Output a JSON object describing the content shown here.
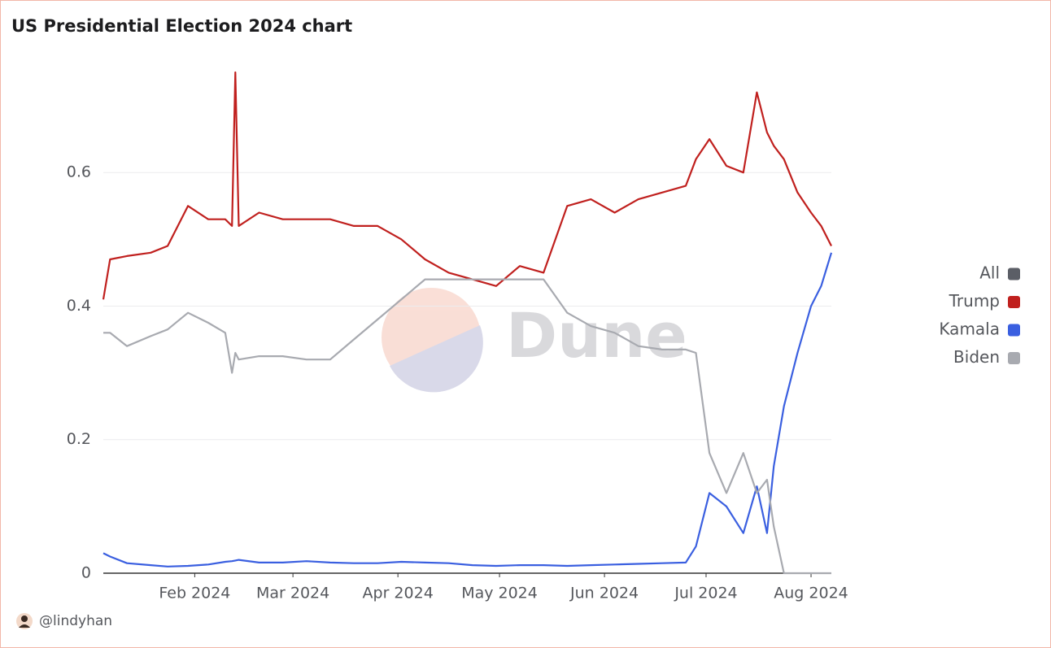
{
  "chart_data": {
    "type": "line",
    "title": "US Presidential Election 2024 chart",
    "watermark": "Dune",
    "footer": "@lindyhan",
    "x": [
      "2024-01-05",
      "2024-01-07",
      "2024-01-12",
      "2024-01-19",
      "2024-01-24",
      "2024-01-30",
      "2024-02-05",
      "2024-02-10",
      "2024-02-12",
      "2024-02-13",
      "2024-02-14",
      "2024-02-20",
      "2024-02-27",
      "2024-03-05",
      "2024-03-12",
      "2024-03-19",
      "2024-03-26",
      "2024-04-02",
      "2024-04-09",
      "2024-04-16",
      "2024-04-23",
      "2024-04-30",
      "2024-05-07",
      "2024-05-14",
      "2024-05-21",
      "2024-05-28",
      "2024-06-04",
      "2024-06-11",
      "2024-06-18",
      "2024-06-25",
      "2024-06-28",
      "2024-07-02",
      "2024-07-07",
      "2024-07-12",
      "2024-07-16",
      "2024-07-19",
      "2024-07-21",
      "2024-07-24",
      "2024-07-28",
      "2024-08-01",
      "2024-08-04",
      "2024-08-07"
    ],
    "series": [
      {
        "name": "All",
        "color": "#5b5e66",
        "values": [
          null,
          null,
          null,
          null,
          null,
          null,
          null,
          null,
          null,
          null,
          null,
          null,
          null,
          null,
          null,
          null,
          null,
          null,
          null,
          null,
          null,
          null,
          null,
          null,
          null,
          null,
          null,
          null,
          null,
          null,
          null,
          null,
          null,
          null,
          null,
          null,
          null,
          null,
          null,
          null,
          null,
          null
        ]
      },
      {
        "name": "Trump",
        "color": "#c0201e",
        "values": [
          0.41,
          0.47,
          0.475,
          0.48,
          0.49,
          0.55,
          0.53,
          0.53,
          0.52,
          0.75,
          0.52,
          0.54,
          0.53,
          0.53,
          0.53,
          0.52,
          0.52,
          0.5,
          0.47,
          0.45,
          0.44,
          0.43,
          0.46,
          0.45,
          0.55,
          0.56,
          0.54,
          0.56,
          0.57,
          0.58,
          0.62,
          0.65,
          0.61,
          0.6,
          0.72,
          0.66,
          0.64,
          0.62,
          0.57,
          0.54,
          0.52,
          0.49
        ]
      },
      {
        "name": "Kamala",
        "color": "#3a5fe0",
        "values": [
          0.03,
          0.025,
          0.015,
          0.012,
          0.01,
          0.011,
          0.013,
          0.017,
          0.018,
          0.019,
          0.02,
          0.016,
          0.016,
          0.018,
          0.016,
          0.015,
          0.015,
          0.017,
          0.016,
          0.015,
          0.012,
          0.011,
          0.012,
          0.012,
          0.011,
          0.012,
          0.013,
          0.014,
          0.015,
          0.016,
          0.04,
          0.12,
          0.1,
          0.06,
          0.13,
          0.06,
          0.16,
          0.25,
          0.33,
          0.4,
          0.43,
          0.48
        ]
      },
      {
        "name": "Biden",
        "color": "#a8aab0",
        "values": [
          0.36,
          0.36,
          0.34,
          0.355,
          0.365,
          0.39,
          0.375,
          0.36,
          0.3,
          0.33,
          0.32,
          0.325,
          0.325,
          0.32,
          0.32,
          0.35,
          0.38,
          0.41,
          0.44,
          0.44,
          0.44,
          0.44,
          0.44,
          0.44,
          0.39,
          0.37,
          0.36,
          0.34,
          0.335,
          0.335,
          0.33,
          0.18,
          0.12,
          0.18,
          0.12,
          0.14,
          0.07,
          0,
          0,
          0,
          0,
          0
        ]
      }
    ],
    "xlim": [
      "2024-01-05",
      "2024-08-07"
    ],
    "xticks": [
      {
        "value": "2024-02-01",
        "label": "Feb 2024"
      },
      {
        "value": "2024-03-01",
        "label": "Mar 2024"
      },
      {
        "value": "2024-04-01",
        "label": "Apr 2024"
      },
      {
        "value": "2024-05-01",
        "label": "May 2024"
      },
      {
        "value": "2024-06-01",
        "label": "Jun 2024"
      },
      {
        "value": "2024-07-01",
        "label": "Jul 2024"
      },
      {
        "value": "2024-08-01",
        "label": "Aug 2024"
      }
    ],
    "ylim": [
      0,
      0.75
    ],
    "yticks": [
      0,
      0.2,
      0.4,
      0.6
    ],
    "grid": true,
    "legend": "right"
  }
}
